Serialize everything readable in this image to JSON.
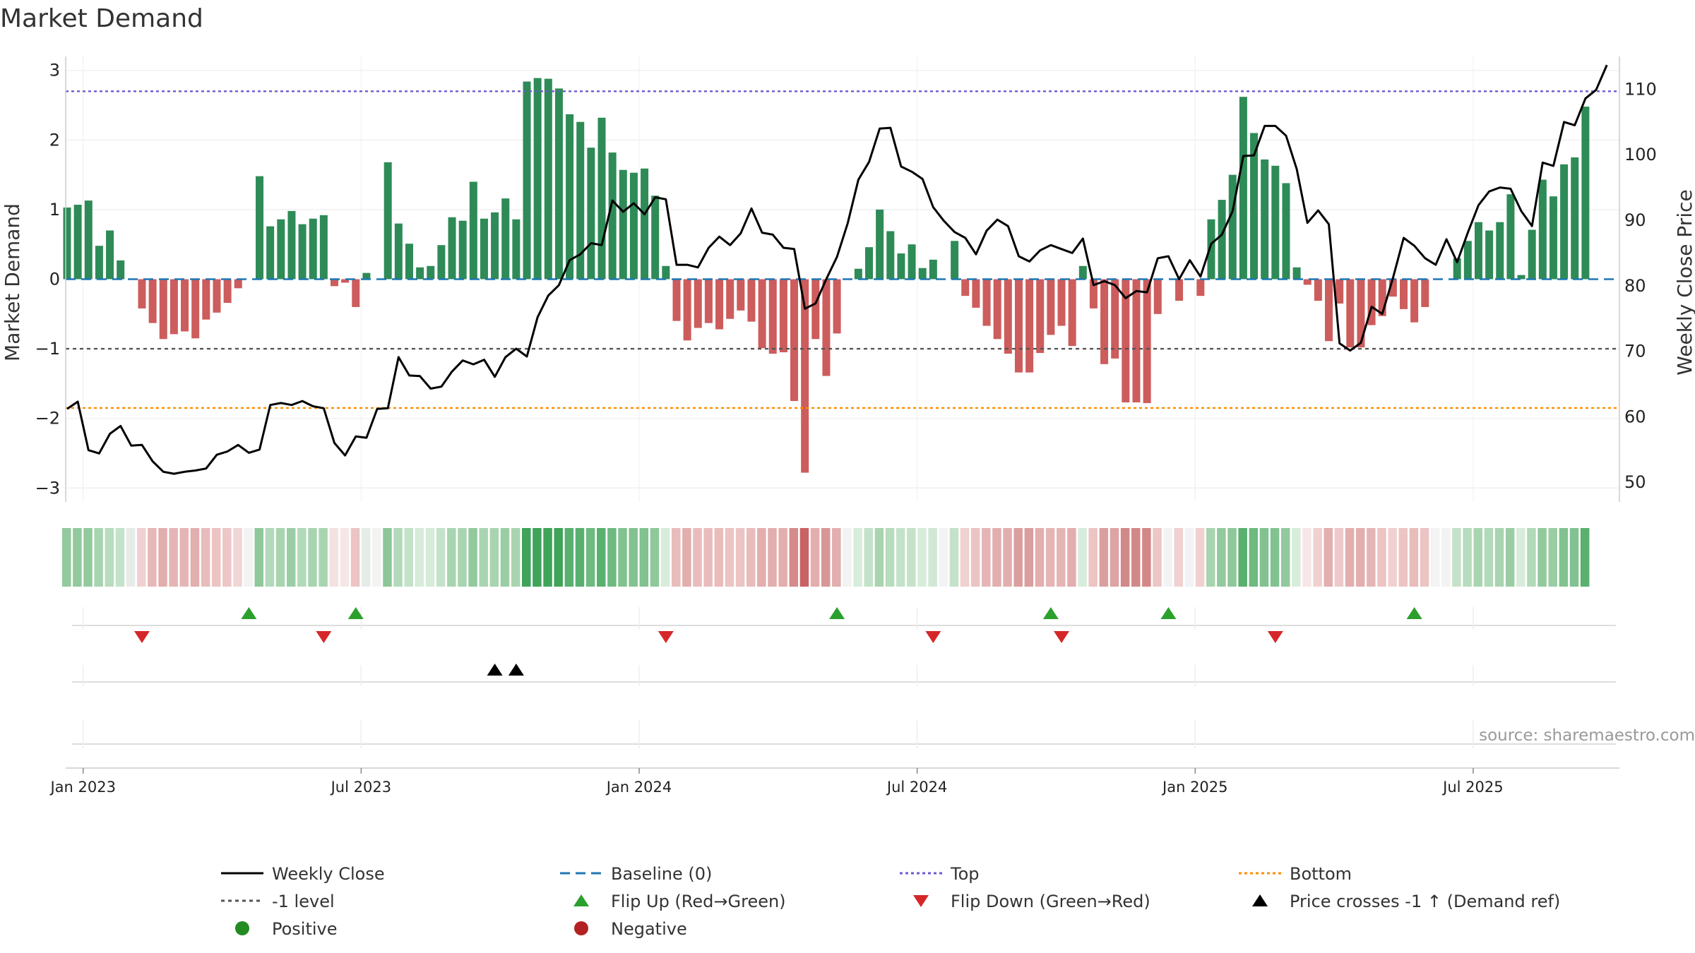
{
  "chart_data": {
    "type": "bar+line",
    "title": "Market Demand",
    "ylabel_left": "Market Demand",
    "ylabel_right": "Weekly Close Price",
    "ylim_left": [
      -3.2,
      3.2
    ],
    "ylim_right": [
      47,
      115
    ],
    "left_ticks": [
      3,
      2,
      1,
      0,
      -1,
      -2,
      -3
    ],
    "left_tick_labels": [
      "3",
      "2",
      "1",
      "0",
      "−1",
      "−2",
      "−3"
    ],
    "right_ticks": [
      110,
      100,
      90,
      80,
      70,
      60,
      50
    ],
    "right_tick_labels": [
      "110",
      "100",
      "90",
      "80",
      "70",
      "60",
      "50"
    ],
    "x_tick_labels": [
      "Jan 2023",
      "Jul 2023",
      "Jan 2024",
      "Jul 2024",
      "Jan 2025",
      "Jul 2025"
    ],
    "x_tick_weeks": [
      1.5,
      27.5,
      53.5,
      79.5,
      105.5,
      131.5
    ],
    "reference_lines": {
      "baseline": 0,
      "top": 2.7,
      "bottom": -1.85,
      "minus_one": -1
    },
    "demand": [
      1.03,
      1.07,
      1.13,
      0.48,
      0.7,
      0.27,
      0,
      -0.42,
      -0.63,
      -0.86,
      -0.79,
      -0.75,
      -0.85,
      -0.58,
      -0.48,
      -0.34,
      -0.13,
      0,
      1.48,
      0.76,
      0.86,
      0.98,
      0.79,
      0.87,
      0.92,
      -0.1,
      -0.05,
      -0.4,
      0.09,
      0,
      1.68,
      0.8,
      0.51,
      0.17,
      0.19,
      0.49,
      0.89,
      0.84,
      1.4,
      0.87,
      0.96,
      1.16,
      0.86,
      2.84,
      2.89,
      2.88,
      2.74,
      2.37,
      2.26,
      1.89,
      2.32,
      1.82,
      1.57,
      1.53,
      1.59,
      1.2,
      0.19,
      -0.6,
      -0.88,
      -0.7,
      -0.63,
      -0.72,
      -0.57,
      -0.45,
      -0.61,
      -0.99,
      -1.07,
      -1.05,
      -1.75,
      -2.78,
      -0.86,
      -1.39,
      -0.78,
      0,
      0.15,
      0.46,
      1.0,
      0.69,
      0.37,
      0.5,
      0.16,
      0.28,
      0,
      0.55,
      -0.24,
      -0.41,
      -0.67,
      -0.86,
      -1.07,
      -1.34,
      -1.34,
      -1.06,
      -0.8,
      -0.67,
      -0.96,
      0.19,
      -0.42,
      -1.22,
      -1.14,
      -1.77,
      -1.77,
      -1.78,
      -0.5,
      0,
      -0.31,
      0,
      -0.24,
      0.86,
      1.14,
      1.5,
      2.62,
      2.1,
      1.72,
      1.63,
      1.38,
      0.17,
      -0.08,
      -0.31,
      -0.89,
      -0.35,
      -0.98,
      -0.98,
      -0.66,
      -0.53,
      -0.25,
      -0.43,
      -0.62,
      -0.4,
      0,
      0,
      0.3,
      0.55,
      0.82,
      0.7,
      0.82,
      1.22,
      0.06,
      0.71,
      1.43,
      1.19,
      1.65,
      1.75,
      2.48
    ],
    "weekly_close": [
      61.2,
      62.3,
      54.9,
      54.4,
      57.4,
      58.6,
      55.6,
      55.7,
      53.2,
      51.6,
      51.3,
      51.6,
      51.8,
      52.1,
      54.2,
      54.7,
      55.7,
      54.5,
      55.0,
      61.8,
      62.1,
      61.8,
      62.4,
      61.6,
      61.3,
      56.0,
      54.1,
      57.0,
      56.8,
      61.2,
      61.3,
      69.1,
      66.3,
      66.2,
      64.3,
      64.6,
      66.9,
      68.6,
      68.0,
      68.7,
      66.1,
      69.1,
      70.4,
      69.2,
      75.2,
      78.5,
      80.1,
      83.9,
      84.8,
      86.5,
      86.2,
      93.0,
      91.3,
      92.6,
      90.9,
      93.5,
      93.2,
      83.2,
      83.2,
      82.8,
      85.8,
      87.5,
      86.2,
      88.0,
      91.8,
      88.1,
      87.8,
      85.8,
      85.6,
      76.5,
      77.3,
      81.0,
      84.4,
      89.5,
      96.2,
      98.9,
      104.0,
      104.1,
      98.2,
      97.4,
      96.3,
      92.0,
      89.9,
      88.2,
      87.3,
      84.8,
      88.4,
      90.1,
      89.1,
      84.5,
      83.7,
      85.4,
      86.2,
      85.6,
      85.0,
      87.2,
      80.1,
      80.7,
      80.1,
      78.1,
      79.2,
      79.0,
      84.2,
      84.5,
      81.0,
      83.9,
      81.4,
      86.4,
      87.8,
      91.4,
      99.8,
      99.9,
      104.4,
      104.4,
      102.9,
      97.8,
      89.6,
      91.5,
      89.4,
      71.2,
      70.1,
      71.3,
      76.8,
      75.7,
      81.2,
      87.3,
      86.1,
      84.2,
      83.2,
      87.1,
      83.6,
      88.1,
      92.3,
      94.4,
      95.0,
      94.8,
      91.4,
      89.1,
      98.8,
      98.3,
      105.0,
      104.5,
      108.6,
      109.9,
      113.7
    ],
    "strength_colors": [
      "#92c99d",
      "#92c99d",
      "#92c99d",
      "#a9d4b0",
      "#b7dcbe",
      "#c4e2c9",
      "#e6ece8",
      "#f0d0d0",
      "#e6b8b8",
      "#e2aeae",
      "#e5b5b5",
      "#e5b5b5",
      "#e2aeae",
      "#e9bcbc",
      "#ecc4c4",
      "#edc6c6",
      "#f1d6d6",
      "#f3f3f3",
      "#8fc89a",
      "#b2d9b9",
      "#a9d4b0",
      "#9bcda5",
      "#b2d9b9",
      "#a9d4b0",
      "#a9d4b0",
      "#f3e2e2",
      "#f6e6e6",
      "#ecc4c4",
      "#e4eee6",
      "#f3f3f3",
      "#8dc798",
      "#b2d9b9",
      "#c4e2c9",
      "#d6ebd9",
      "#d6ebd9",
      "#c4e2c9",
      "#a9d4b0",
      "#a9d4b0",
      "#92c99d",
      "#a9d4b0",
      "#a9d4b0",
      "#9bcda5",
      "#a9d4b0",
      "#3fa35a",
      "#3fa35a",
      "#3fa35a",
      "#3fa35a",
      "#59b06f",
      "#59b06f",
      "#6eba80",
      "#59b06f",
      "#6eba80",
      "#82c290",
      "#82c290",
      "#82c290",
      "#8fc89a",
      "#d8ecdb",
      "#e9bcbc",
      "#e2aeae",
      "#e9bcbc",
      "#e9bcbc",
      "#e9bcbc",
      "#ecc4c4",
      "#ecc4c4",
      "#e9bcbc",
      "#e2aeae",
      "#e2aeae",
      "#e2aeae",
      "#d68b8b",
      "#c96363",
      "#e2aeae",
      "#d99696",
      "#e2aeae",
      "#f3f3f3",
      "#d8ecdb",
      "#c4e2c9",
      "#a9d4b0",
      "#b7dcbe",
      "#c4e2c9",
      "#c4e2c9",
      "#d8ecdb",
      "#d1e8d5",
      "#f3f3f3",
      "#c4e2c9",
      "#f0d0d0",
      "#ecc4c4",
      "#e5b5b5",
      "#e2aeae",
      "#e2aeae",
      "#db9e9e",
      "#db9e9e",
      "#e2aeae",
      "#e5b5b5",
      "#e5b5b5",
      "#e2aeae",
      "#d8ecdb",
      "#ecc4c4",
      "#db9e9e",
      "#dca4a4",
      "#d18888",
      "#d18888",
      "#d18888",
      "#edc6c6",
      "#f3f3f3",
      "#f0d0d0",
      "#f3f3f3",
      "#f0d0d0",
      "#a9d4b0",
      "#92c99d",
      "#8fc89a",
      "#59b06f",
      "#6eba80",
      "#82c290",
      "#82c290",
      "#92c99d",
      "#d8ecdb",
      "#f6e6e6",
      "#f0d0d0",
      "#e2aeae",
      "#eec9c9",
      "#e2aeae",
      "#e2aeae",
      "#e5b5b5",
      "#ecc4c4",
      "#f0d0d0",
      "#ecc4c4",
      "#e9bcbc",
      "#ecc4c4",
      "#f3f3f3",
      "#f3f3f3",
      "#c4e2c9",
      "#b7dcbe",
      "#a9d4b0",
      "#b2d9b9",
      "#a9d4b0",
      "#9bcda5",
      "#d8ecdb",
      "#b2d9b9",
      "#92c99d",
      "#9bcda5",
      "#82c290",
      "#82c290",
      "#59b06f"
    ],
    "flip_up_weeks": [
      17,
      27,
      72,
      92,
      103,
      126
    ],
    "flip_down_weeks": [
      7,
      24,
      56,
      81,
      93,
      113
    ],
    "price_cross_weeks": [
      40,
      42
    ],
    "source": "source: sharemaestro.com",
    "legend": [
      "Weekly Close",
      "Baseline (0)",
      "Top",
      "Bottom",
      "-1 level",
      "Flip Up (Red→Green)",
      "Flip Down (Green→Red)",
      "Price crosses -1 ↑ (Demand ref)",
      "Positive",
      "Negative"
    ],
    "colors": {
      "positive": "#2e8b57",
      "negative": "#cd5c5c",
      "price": "#000000",
      "baseline": "#1f77b4",
      "top": "#6a5acd",
      "bottom": "#ff8c00",
      "minus_one": "#555555",
      "flip_up": "#2ca02c",
      "flip_down": "#d62728",
      "cross": "#000000",
      "positive_dot": "#228b22",
      "negative_dot": "#b22222"
    }
  }
}
